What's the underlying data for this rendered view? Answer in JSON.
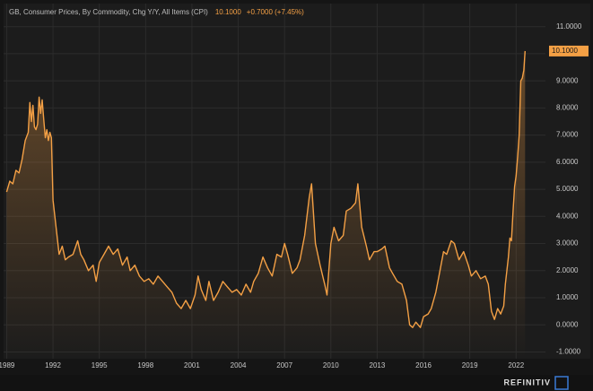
{
  "chart_data": {
    "type": "line",
    "title": "GB, Consumer Prices, By Commodity, Chg Y/Y, All Items (CPI)",
    "last_value": "10.1000",
    "change": "+0.7000 (+7.45%)",
    "x": [
      1989.0,
      1989.2,
      1989.4,
      1989.6,
      1989.8,
      1990.0,
      1990.2,
      1990.4,
      1990.5,
      1990.6,
      1990.7,
      1990.8,
      1990.9,
      1991.0,
      1991.1,
      1991.2,
      1991.3,
      1991.4,
      1991.5,
      1991.6,
      1991.7,
      1991.8,
      1991.9,
      1992.0,
      1992.2,
      1992.4,
      1992.6,
      1992.8,
      1993.0,
      1993.3,
      1993.6,
      1993.8,
      1994.0,
      1994.3,
      1994.6,
      1994.8,
      1995.0,
      1995.3,
      1995.6,
      1995.9,
      1996.2,
      1996.5,
      1996.8,
      1997.0,
      1997.3,
      1997.6,
      1997.9,
      1998.2,
      1998.5,
      1998.8,
      1999.1,
      1999.4,
      1999.7,
      2000.0,
      2000.3,
      2000.6,
      2000.9,
      2001.2,
      2001.4,
      2001.6,
      2001.9,
      2002.1,
      2002.4,
      2002.7,
      2003.0,
      2003.3,
      2003.6,
      2003.9,
      2004.2,
      2004.5,
      2004.8,
      2005.0,
      2005.3,
      2005.6,
      2005.9,
      2006.2,
      2006.5,
      2006.8,
      2007.0,
      2007.2,
      2007.5,
      2007.8,
      2008.0,
      2008.3,
      2008.6,
      2008.75,
      2009.0,
      2009.3,
      2009.6,
      2009.75,
      2010.0,
      2010.2,
      2010.5,
      2010.8,
      2011.0,
      2011.3,
      2011.6,
      2011.75,
      2012.0,
      2012.3,
      2012.5,
      2012.8,
      2013.0,
      2013.3,
      2013.5,
      2013.8,
      2014.0,
      2014.3,
      2014.6,
      2014.9,
      2015.1,
      2015.3,
      2015.5,
      2015.8,
      2016.0,
      2016.3,
      2016.5,
      2016.8,
      2017.0,
      2017.3,
      2017.5,
      2017.8,
      2018.0,
      2018.3,
      2018.6,
      2018.9,
      2019.1,
      2019.4,
      2019.7,
      2020.0,
      2020.2,
      2020.4,
      2020.6,
      2020.8,
      2021.0,
      2021.2,
      2021.3,
      2021.5,
      2021.6,
      2021.7,
      2021.8,
      2021.9,
      2022.0,
      2022.1,
      2022.2,
      2022.3,
      2022.4,
      2022.5,
      2022.58
    ],
    "series": [
      {
        "name": "GB CPI",
        "color": "#f4a045",
        "values": [
          4.9,
          5.3,
          5.2,
          5.7,
          5.6,
          6.1,
          6.8,
          7.1,
          8.2,
          7.5,
          8.1,
          7.3,
          7.2,
          7.4,
          8.4,
          7.8,
          8.3,
          7.6,
          6.9,
          7.2,
          6.8,
          7.1,
          6.9,
          4.6,
          3.6,
          2.6,
          2.9,
          2.4,
          2.5,
          2.6,
          3.1,
          2.6,
          2.4,
          2.0,
          2.2,
          1.6,
          2.3,
          2.6,
          2.9,
          2.6,
          2.8,
          2.2,
          2.5,
          2.0,
          2.2,
          1.8,
          1.6,
          1.7,
          1.5,
          1.8,
          1.6,
          1.4,
          1.2,
          0.8,
          0.6,
          0.9,
          0.6,
          1.1,
          1.8,
          1.3,
          0.9,
          1.6,
          0.9,
          1.2,
          1.6,
          1.4,
          1.2,
          1.3,
          1.1,
          1.5,
          1.2,
          1.6,
          1.9,
          2.5,
          2.1,
          1.8,
          2.6,
          2.5,
          3.0,
          2.6,
          1.9,
          2.1,
          2.4,
          3.3,
          4.7,
          5.2,
          3.0,
          2.2,
          1.5,
          1.1,
          3.0,
          3.6,
          3.1,
          3.3,
          4.2,
          4.3,
          4.5,
          5.2,
          3.6,
          2.9,
          2.4,
          2.7,
          2.7,
          2.8,
          2.9,
          2.1,
          1.9,
          1.6,
          1.5,
          0.9,
          0.0,
          -0.1,
          0.1,
          -0.1,
          0.3,
          0.4,
          0.6,
          1.2,
          1.8,
          2.7,
          2.6,
          3.1,
          3.0,
          2.4,
          2.7,
          2.2,
          1.8,
          2.0,
          1.7,
          1.8,
          1.5,
          0.5,
          0.2,
          0.6,
          0.4,
          0.7,
          1.5,
          2.5,
          3.2,
          3.1,
          4.2,
          5.1,
          5.5,
          6.2,
          7.0,
          9.0,
          9.1,
          9.4,
          10.1
        ]
      }
    ],
    "xlim": [
      1988.8,
      2023.9
    ],
    "xticks": [
      1989,
      1992,
      1995,
      1998,
      2001,
      2004,
      2007,
      2010,
      2013,
      2016,
      2019,
      2022
    ],
    "ylim": [
      -1.25,
      11.85
    ],
    "yticks": [
      {
        "value": -1,
        "label": "-1.0000"
      },
      {
        "value": 0,
        "label": "0.0000"
      },
      {
        "value": 1,
        "label": "1.0000"
      },
      {
        "value": 2,
        "label": "2.0000"
      },
      {
        "value": 3,
        "label": "3.0000"
      },
      {
        "value": 4,
        "label": "4.0000"
      },
      {
        "value": 5,
        "label": "5.0000"
      },
      {
        "value": 6,
        "label": "6.0000"
      },
      {
        "value": 7,
        "label": "7.0000"
      },
      {
        "value": 8,
        "label": "8.0000"
      },
      {
        "value": 9,
        "label": "9.0000"
      },
      {
        "value": 10,
        "label": "10.0000"
      },
      {
        "value": 11,
        "label": "11.0000"
      }
    ],
    "grid": true
  },
  "footer": {
    "brand": "REFINITIV"
  }
}
